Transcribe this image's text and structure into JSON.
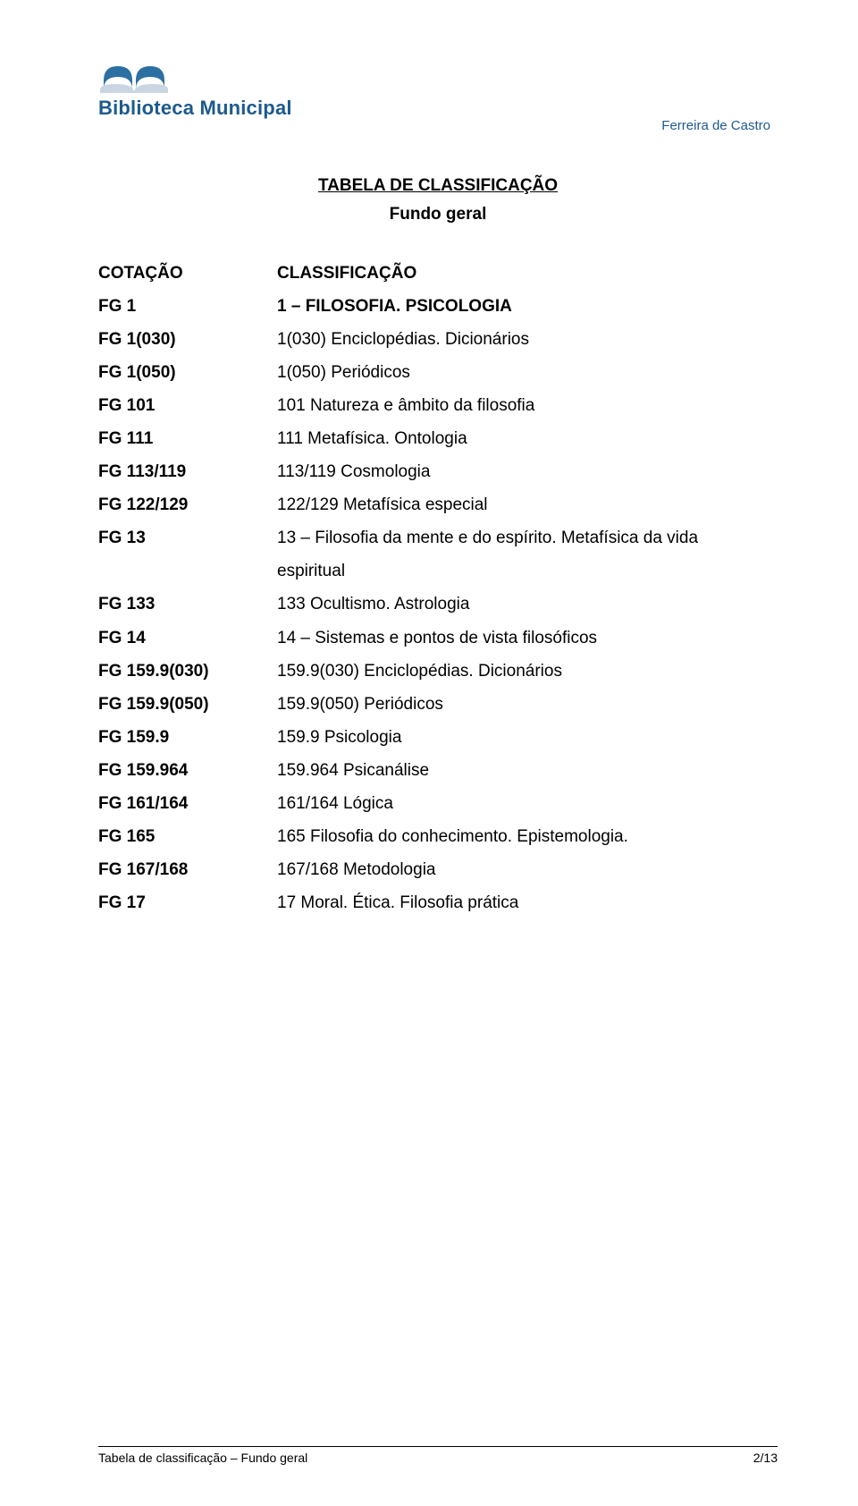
{
  "logo": {
    "line1": "Biblioteca Municipal",
    "line2": "Ferreira de Castro",
    "brand_color": "#1c5a8e",
    "book_fill": "#2c6fa3",
    "book_shadow": "#c9d6e2"
  },
  "title": {
    "main": "TABELA DE CLASSIFICAÇÃO",
    "sub": "Fundo geral"
  },
  "headers": {
    "code": "COTAÇÃO",
    "desc": "CLASSIFICAÇÃO"
  },
  "rows": [
    {
      "code": "FG 1",
      "desc": "1 – FILOSOFIA. PSICOLOGIA",
      "bold_desc": true
    },
    {
      "code": "FG 1(030)",
      "desc": "1(030) Enciclopédias. Dicionários"
    },
    {
      "code": "FG 1(050)",
      "desc": "1(050) Periódicos"
    },
    {
      "code": "FG 101",
      "desc": "101 Natureza e âmbito da filosofia"
    },
    {
      "code": "FG 111",
      "desc": "111 Metafísica. Ontologia"
    },
    {
      "code": "FG 113/119",
      "desc": "113/119 Cosmologia"
    },
    {
      "code": "FG 122/129",
      "desc": "122/129 Metafísica especial"
    },
    {
      "code": "FG 13",
      "desc": "13 – Filosofia da mente e do espírito. Metafísica da vida"
    },
    {
      "code": "",
      "desc": "espiritual",
      "continuation": true
    },
    {
      "code": "FG 133",
      "desc": "133 Ocultismo. Astrologia"
    },
    {
      "code": "FG 14",
      "desc": "14 – Sistemas e pontos de vista filosóficos"
    },
    {
      "code": "FG 159.9(030)",
      "desc": "159.9(030) Enciclopédias. Dicionários"
    },
    {
      "code": "FG 159.9(050)",
      "desc": "159.9(050) Periódicos"
    },
    {
      "code": "FG 159.9",
      "desc": "159.9 Psicologia"
    },
    {
      "code": "FG 159.964",
      "desc": "159.964 Psicanálise"
    },
    {
      "code": "FG 161/164",
      "desc": "161/164 Lógica"
    },
    {
      "code": "FG 165",
      "desc": "165 Filosofia do conhecimento. Epistemologia."
    },
    {
      "code": "FG 167/168",
      "desc": "167/168 Metodologia"
    },
    {
      "code": "FG 17",
      "desc": "17 Moral. Ética. Filosofia prática"
    }
  ],
  "footer": {
    "left": "Tabela de classificação – Fundo geral",
    "right": "2/13"
  }
}
